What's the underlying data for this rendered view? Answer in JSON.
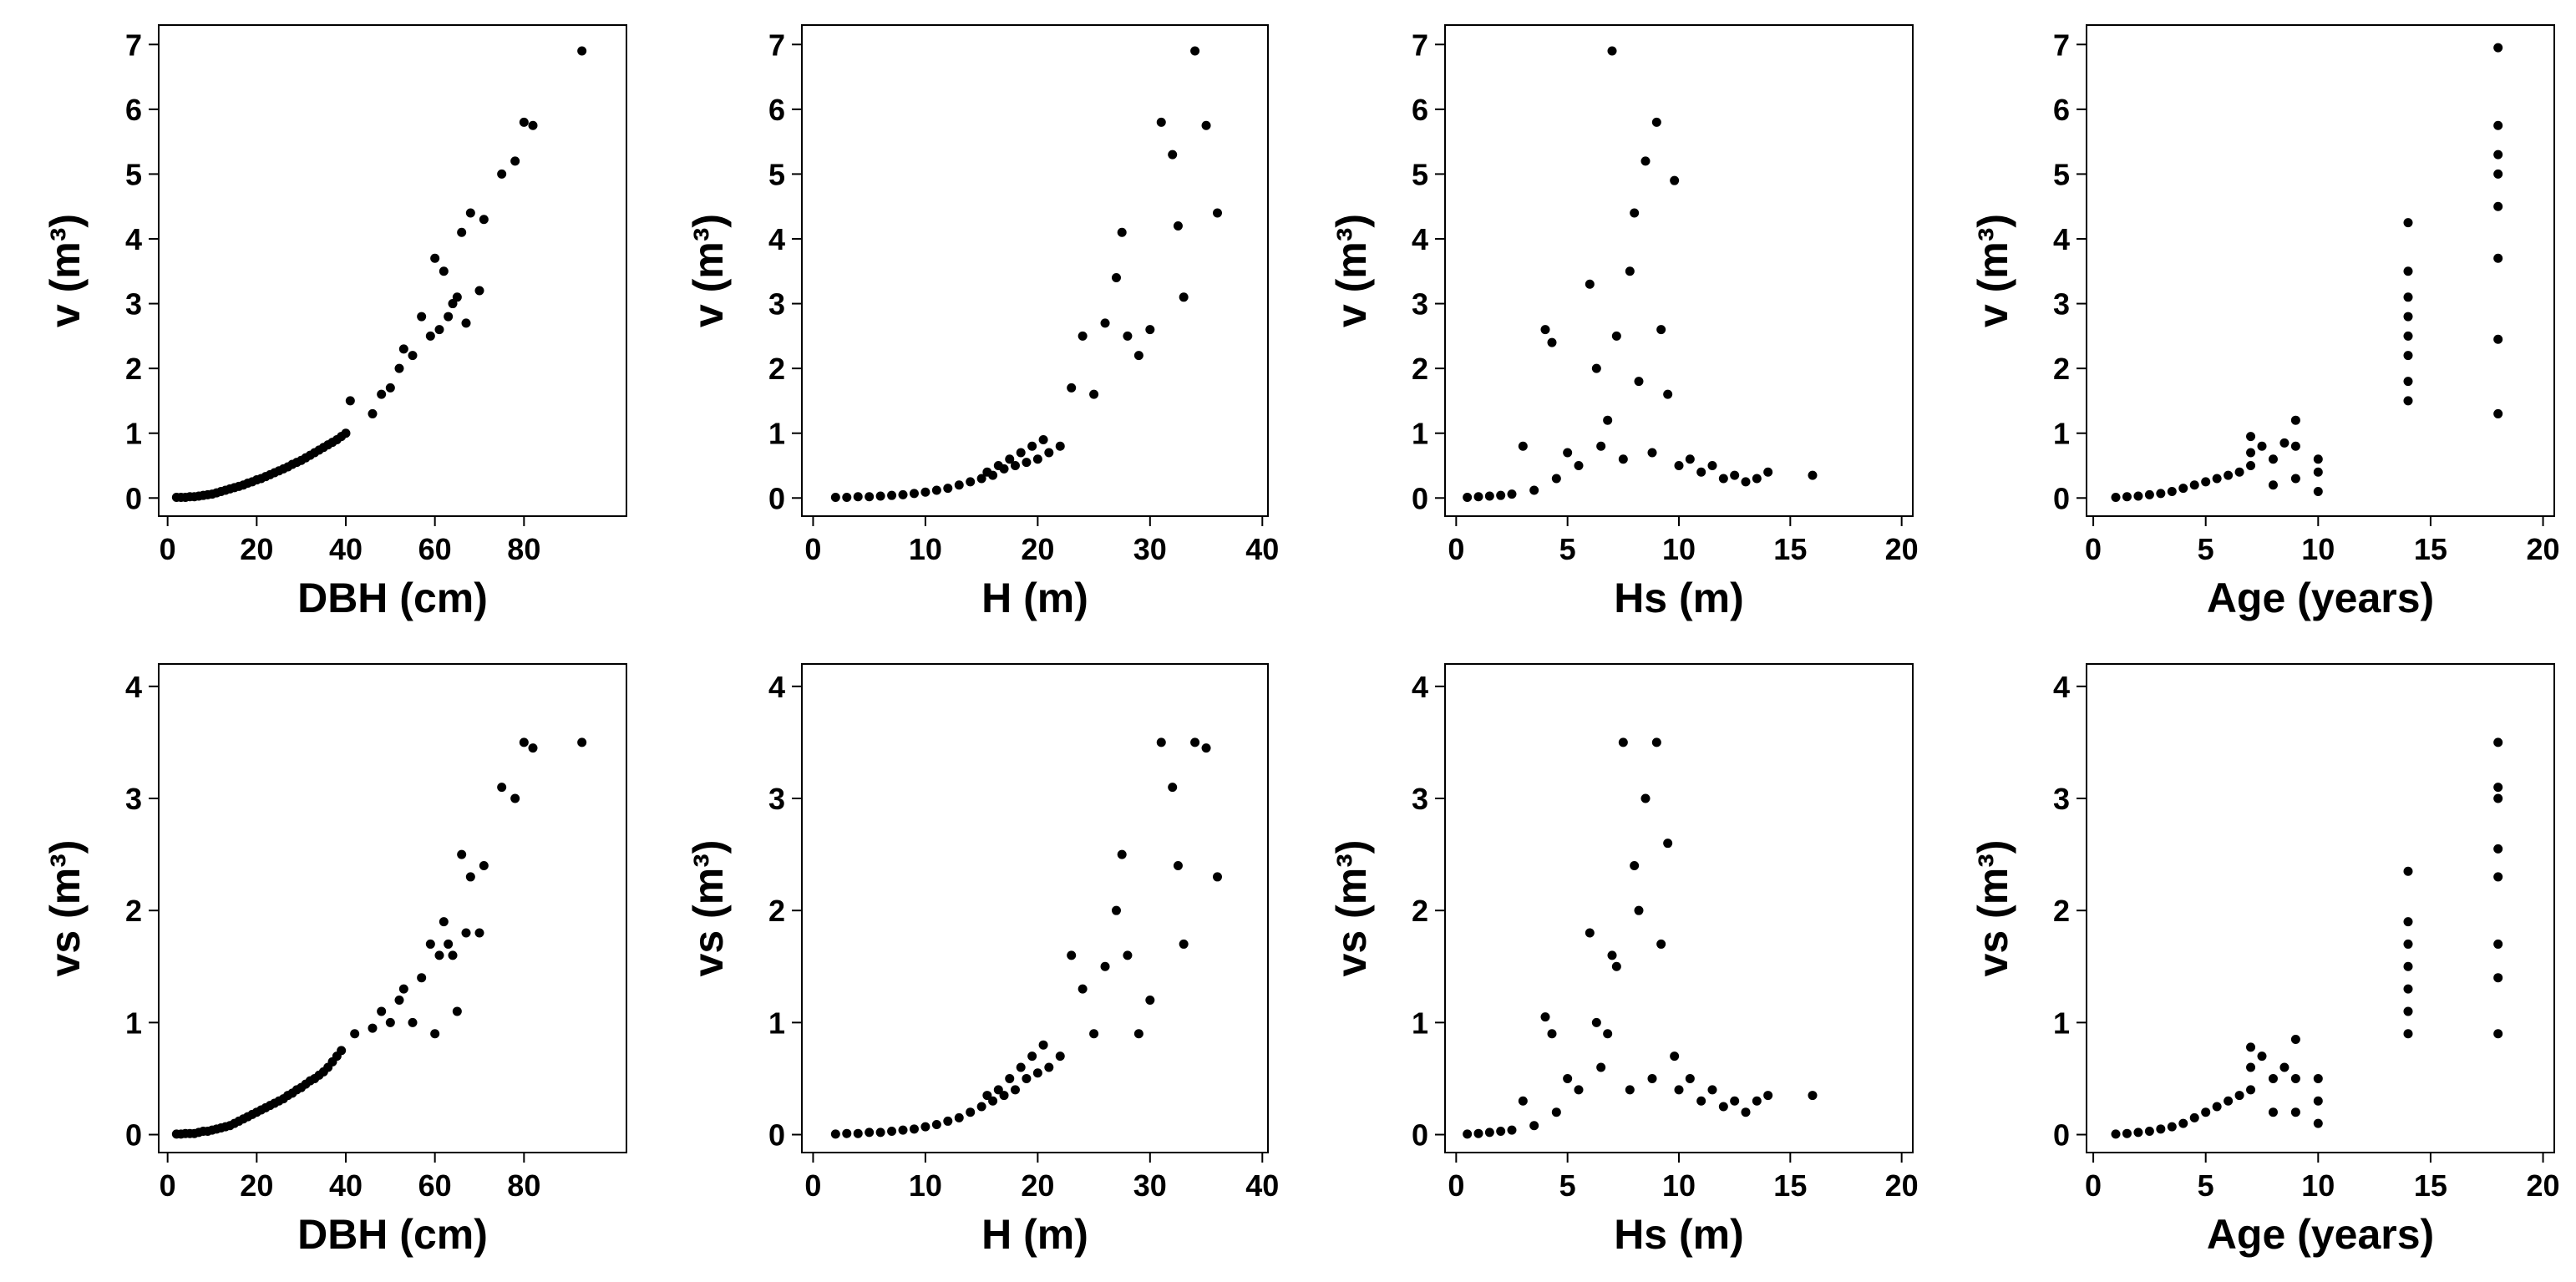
{
  "chart_data": [
    {
      "id": "v-dbh",
      "type": "scatter",
      "xlabel": "DBH (cm)",
      "ylabel": "v (m³)",
      "xlim": [
        -2,
        103
      ],
      "ylim": [
        -0.28,
        7.3
      ],
      "xticks": [
        0,
        20,
        40,
        60,
        80
      ],
      "yticks": [
        0,
        1,
        2,
        3,
        4,
        5,
        6,
        7
      ],
      "x": [
        2,
        3,
        4,
        5,
        6,
        7,
        8,
        9,
        10,
        11,
        12,
        13,
        14,
        15,
        16,
        17,
        18,
        19,
        20,
        21,
        22,
        23,
        24,
        25,
        26,
        27,
        28,
        29,
        30,
        31,
        32,
        33,
        34,
        35,
        36,
        37,
        38,
        39,
        40,
        41,
        46,
        48,
        50,
        52,
        53,
        55,
        57,
        59,
        60,
        61,
        62,
        63,
        64,
        65,
        66,
        67,
        68,
        70,
        71,
        75,
        78,
        80,
        82,
        93
      ],
      "y": [
        0.01,
        0.01,
        0.01,
        0.02,
        0.02,
        0.03,
        0.04,
        0.05,
        0.06,
        0.08,
        0.1,
        0.12,
        0.14,
        0.16,
        0.18,
        0.2,
        0.23,
        0.25,
        0.28,
        0.3,
        0.33,
        0.36,
        0.39,
        0.42,
        0.45,
        0.48,
        0.52,
        0.55,
        0.58,
        0.62,
        0.66,
        0.7,
        0.74,
        0.78,
        0.82,
        0.86,
        0.9,
        0.95,
        1.0,
        1.5,
        1.3,
        1.6,
        1.7,
        2.0,
        2.3,
        2.2,
        2.8,
        2.5,
        3.7,
        2.6,
        3.5,
        2.8,
        3.0,
        3.1,
        4.1,
        2.7,
        4.4,
        3.2,
        4.3,
        5.0,
        5.2,
        5.8,
        5.75,
        6.9
      ]
    },
    {
      "id": "v-h",
      "type": "scatter",
      "xlabel": "H (m)",
      "ylabel": "v (m³)",
      "xlim": [
        -1,
        40.5
      ],
      "ylim": [
        -0.28,
        7.3
      ],
      "xticks": [
        0,
        10,
        20,
        30,
        40
      ],
      "yticks": [
        0,
        1,
        2,
        3,
        4,
        5,
        6,
        7
      ],
      "x": [
        2,
        3,
        4,
        5,
        6,
        7,
        8,
        9,
        10,
        11,
        12,
        13,
        14,
        15,
        15.5,
        16,
        16.5,
        17,
        17.5,
        18,
        18.5,
        19,
        19.5,
        20,
        20.5,
        21,
        22,
        23,
        24,
        25,
        26,
        27,
        27.5,
        28,
        29,
        30,
        31,
        32,
        32.5,
        33,
        34,
        35,
        36
      ],
      "y": [
        0.01,
        0.01,
        0.02,
        0.02,
        0.03,
        0.04,
        0.05,
        0.07,
        0.09,
        0.12,
        0.15,
        0.2,
        0.25,
        0.3,
        0.4,
        0.35,
        0.5,
        0.45,
        0.6,
        0.5,
        0.7,
        0.55,
        0.8,
        0.6,
        0.9,
        0.7,
        0.8,
        1.7,
        2.5,
        1.6,
        2.7,
        3.4,
        4.1,
        2.5,
        2.2,
        2.6,
        5.8,
        5.3,
        4.2,
        3.1,
        6.9,
        5.75,
        4.4
      ]
    },
    {
      "id": "v-hs",
      "type": "scatter",
      "xlabel": "Hs (m)",
      "ylabel": "v (m³)",
      "xlim": [
        -0.5,
        20.5
      ],
      "ylim": [
        -0.28,
        7.3
      ],
      "xticks": [
        0,
        5,
        10,
        15,
        20
      ],
      "yticks": [
        0,
        1,
        2,
        3,
        4,
        5,
        6,
        7
      ],
      "x": [
        0.5,
        1,
        1.5,
        2,
        2.5,
        3,
        3.5,
        4,
        4.3,
        4.5,
        5,
        5.5,
        6,
        6.3,
        6.5,
        6.8,
        7,
        7.2,
        7.5,
        7.8,
        8,
        8.2,
        8.5,
        8.8,
        9,
        9.2,
        9.5,
        9.8,
        10,
        10.5,
        11,
        11.5,
        12,
        12.5,
        13,
        13.5,
        14,
        16
      ],
      "y": [
        0.01,
        0.02,
        0.03,
        0.04,
        0.06,
        0.8,
        0.12,
        2.6,
        2.4,
        0.3,
        0.7,
        0.5,
        3.3,
        2.0,
        0.8,
        1.2,
        6.9,
        2.5,
        0.6,
        3.5,
        4.4,
        1.8,
        5.2,
        0.7,
        5.8,
        2.6,
        1.6,
        4.9,
        0.5,
        0.6,
        0.4,
        0.5,
        0.3,
        0.35,
        0.25,
        0.3,
        0.4,
        0.35
      ]
    },
    {
      "id": "v-age",
      "type": "scatter",
      "xlabel": "Age (years)",
      "ylabel": "v (m³)",
      "xlim": [
        -0.3,
        20.5
      ],
      "ylim": [
        -0.28,
        7.3
      ],
      "xticks": [
        0,
        5,
        10,
        15,
        20
      ],
      "yticks": [
        0,
        1,
        2,
        3,
        4,
        5,
        6,
        7
      ],
      "x": [
        1,
        1.5,
        2,
        2.5,
        3,
        3.5,
        4,
        4.5,
        5,
        5.5,
        6,
        6.5,
        7,
        7,
        7,
        7.5,
        8,
        8,
        8.5,
        9,
        9,
        9,
        10,
        10,
        10,
        14,
        14,
        14,
        14,
        14,
        14,
        14,
        14,
        18,
        18,
        18,
        18,
        18,
        18,
        18,
        18
      ],
      "y": [
        0.01,
        0.02,
        0.03,
        0.05,
        0.07,
        0.1,
        0.15,
        0.2,
        0.25,
        0.3,
        0.35,
        0.4,
        0.5,
        0.7,
        0.95,
        0.8,
        0.2,
        0.6,
        0.85,
        0.3,
        0.8,
        1.2,
        0.1,
        0.4,
        0.6,
        1.5,
        1.8,
        2.2,
        2.5,
        2.8,
        3.1,
        3.5,
        4.25,
        1.3,
        2.45,
        3.7,
        4.5,
        5.0,
        5.3,
        5.75,
        6.95
      ]
    },
    {
      "id": "vs-dbh",
      "type": "scatter",
      "xlabel": "DBH (cm)",
      "ylabel": "vs (m³)",
      "xlim": [
        -2,
        103
      ],
      "ylim": [
        -0.16,
        4.2
      ],
      "xticks": [
        0,
        20,
        40,
        60,
        80
      ],
      "yticks": [
        0,
        1,
        2,
        3,
        4
      ],
      "x": [
        2,
        3,
        4,
        5,
        6,
        7,
        8,
        9,
        10,
        11,
        12,
        13,
        14,
        15,
        16,
        17,
        18,
        19,
        20,
        21,
        22,
        23,
        24,
        25,
        26,
        27,
        28,
        29,
        30,
        31,
        32,
        33,
        34,
        35,
        36,
        37,
        38,
        39,
        42,
        46,
        48,
        50,
        52,
        53,
        55,
        57,
        59,
        60,
        61,
        62,
        63,
        64,
        65,
        66,
        67,
        68,
        70,
        71,
        75,
        78,
        80,
        82,
        93
      ],
      "y": [
        0.005,
        0.005,
        0.01,
        0.01,
        0.01,
        0.02,
        0.03,
        0.03,
        0.04,
        0.05,
        0.06,
        0.07,
        0.08,
        0.1,
        0.12,
        0.14,
        0.16,
        0.18,
        0.2,
        0.22,
        0.24,
        0.26,
        0.28,
        0.3,
        0.32,
        0.35,
        0.37,
        0.4,
        0.42,
        0.45,
        0.48,
        0.5,
        0.53,
        0.56,
        0.6,
        0.65,
        0.7,
        0.75,
        0.9,
        0.95,
        1.1,
        1.0,
        1.2,
        1.3,
        1.0,
        1.4,
        1.7,
        0.9,
        1.6,
        1.9,
        1.7,
        1.6,
        1.1,
        2.5,
        1.8,
        2.3,
        1.8,
        2.4,
        3.1,
        3.0,
        3.5,
        3.45,
        3.5
      ]
    },
    {
      "id": "vs-h",
      "type": "scatter",
      "xlabel": "H (m)",
      "ylabel": "vs (m³)",
      "xlim": [
        -1,
        40.5
      ],
      "ylim": [
        -0.16,
        4.2
      ],
      "xticks": [
        0,
        10,
        20,
        30,
        40
      ],
      "yticks": [
        0,
        1,
        2,
        3,
        4
      ],
      "x": [
        2,
        3,
        4,
        5,
        6,
        7,
        8,
        9,
        10,
        11,
        12,
        13,
        14,
        15,
        15.5,
        16,
        16.5,
        17,
        17.5,
        18,
        18.5,
        19,
        19.5,
        20,
        20.5,
        21,
        22,
        23,
        24,
        25,
        26,
        27,
        27.5,
        28,
        29,
        30,
        31,
        32,
        32.5,
        33,
        34,
        35,
        36
      ],
      "y": [
        0.005,
        0.01,
        0.01,
        0.02,
        0.02,
        0.03,
        0.04,
        0.05,
        0.07,
        0.09,
        0.12,
        0.15,
        0.2,
        0.25,
        0.35,
        0.3,
        0.4,
        0.35,
        0.5,
        0.4,
        0.6,
        0.5,
        0.7,
        0.55,
        0.8,
        0.6,
        0.7,
        1.6,
        1.3,
        0.9,
        1.5,
        2.0,
        2.5,
        1.6,
        0.9,
        1.2,
        3.5,
        3.1,
        2.4,
        1.7,
        3.5,
        3.45,
        2.3
      ]
    },
    {
      "id": "vs-hs",
      "type": "scatter",
      "xlabel": "Hs (m)",
      "ylabel": "vs (m³)",
      "xlim": [
        -0.5,
        20.5
      ],
      "ylim": [
        -0.16,
        4.2
      ],
      "xticks": [
        0,
        5,
        10,
        15,
        20
      ],
      "yticks": [
        0,
        1,
        2,
        3,
        4
      ],
      "x": [
        0.5,
        1,
        1.5,
        2,
        2.5,
        3,
        3.5,
        4,
        4.3,
        4.5,
        5,
        5.5,
        6,
        6.3,
        6.5,
        6.8,
        7,
        7.2,
        7.5,
        7.8,
        8,
        8.2,
        8.5,
        8.8,
        9,
        9.2,
        9.5,
        9.8,
        10,
        10.5,
        11,
        11.5,
        12,
        12.5,
        13,
        13.5,
        14,
        16
      ],
      "y": [
        0.005,
        0.01,
        0.02,
        0.03,
        0.04,
        0.3,
        0.08,
        1.05,
        0.9,
        0.2,
        0.5,
        0.4,
        1.8,
        1.0,
        0.6,
        0.9,
        1.6,
        1.5,
        3.5,
        0.4,
        2.4,
        2.0,
        3.0,
        0.5,
        3.5,
        1.7,
        2.6,
        0.7,
        0.4,
        0.5,
        0.3,
        0.4,
        0.25,
        0.3,
        0.2,
        0.3,
        0.35,
        0.35
      ]
    },
    {
      "id": "vs-age",
      "type": "scatter",
      "xlabel": "Age (years)",
      "ylabel": "vs (m³)",
      "xlim": [
        -0.3,
        20.5
      ],
      "ylim": [
        -0.16,
        4.2
      ],
      "xticks": [
        0,
        5,
        10,
        15,
        20
      ],
      "yticks": [
        0,
        1,
        2,
        3,
        4
      ],
      "x": [
        1,
        1.5,
        2,
        2.5,
        3,
        3.5,
        4,
        4.5,
        5,
        5.5,
        6,
        6.5,
        7,
        7,
        7,
        7.5,
        8,
        8,
        8.5,
        9,
        9,
        9,
        10,
        10,
        10,
        14,
        14,
        14,
        14,
        14,
        14,
        14,
        18,
        18,
        18,
        18,
        18,
        18,
        18,
        18
      ],
      "y": [
        0.005,
        0.01,
        0.02,
        0.03,
        0.05,
        0.07,
        0.1,
        0.15,
        0.2,
        0.25,
        0.3,
        0.35,
        0.4,
        0.6,
        0.78,
        0.7,
        0.2,
        0.5,
        0.6,
        0.2,
        0.5,
        0.85,
        0.1,
        0.3,
        0.5,
        0.9,
        1.1,
        1.3,
        1.5,
        1.7,
        1.9,
        2.35,
        0.9,
        1.4,
        1.7,
        2.3,
        2.55,
        3.0,
        3.1,
        3.5
      ]
    }
  ]
}
